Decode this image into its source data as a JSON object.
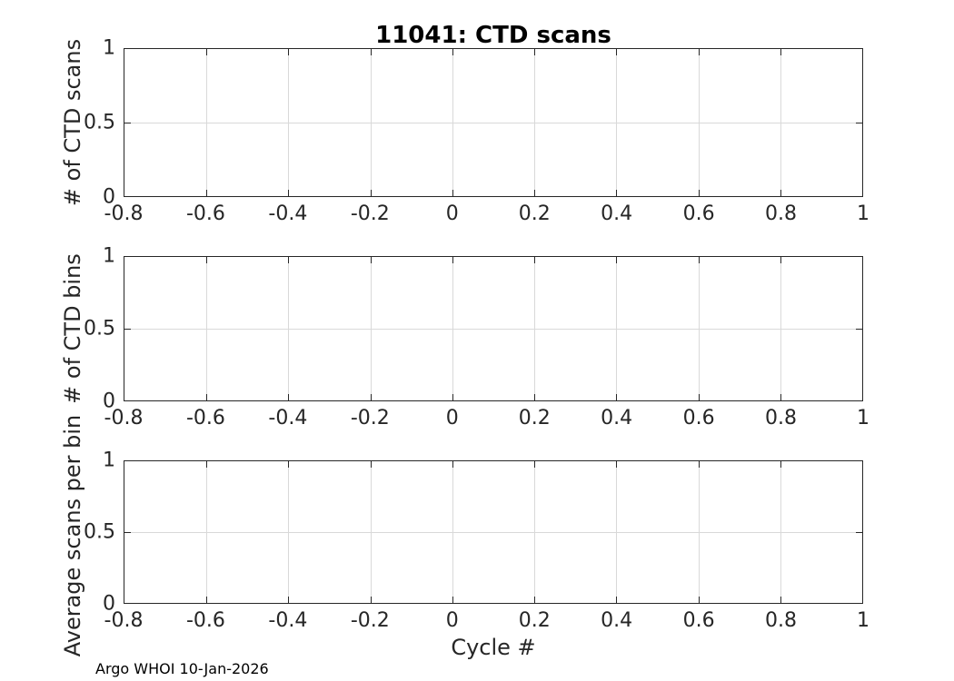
{
  "figure": {
    "title": "11041: CTD scans",
    "xlabel": "Cycle #",
    "footer": "Argo WHOI 10-Jan-2026",
    "background_color": "#ffffff",
    "axis_color": "#262626",
    "grid_color": "#d9d9d9",
    "title_color": "#000000"
  },
  "chart_data": [
    {
      "type": "line",
      "title": "11041: CTD scans",
      "ylabel": "# of CTD scans",
      "xlabel": "",
      "xlim": [
        -0.8,
        1
      ],
      "ylim": [
        0,
        1
      ],
      "xticks": [
        "-0.8",
        "-0.6",
        "-0.4",
        "-0.2",
        "0",
        "0.2",
        "0.4",
        "0.6",
        "0.8",
        "1"
      ],
      "yticks": [
        "0",
        "0.5",
        "1"
      ],
      "grid": true,
      "box": true,
      "series": []
    },
    {
      "type": "line",
      "title": "",
      "ylabel": "# of CTD bins",
      "xlabel": "",
      "xlim": [
        -0.8,
        1
      ],
      "ylim": [
        0,
        1
      ],
      "xticks": [
        "-0.8",
        "-0.6",
        "-0.4",
        "-0.2",
        "0",
        "0.2",
        "0.4",
        "0.6",
        "0.8",
        "1"
      ],
      "yticks": [
        "0",
        "0.5",
        "1"
      ],
      "grid": true,
      "box": true,
      "series": []
    },
    {
      "type": "line",
      "title": "",
      "ylabel": "Average scans per bin",
      "xlabel": "Cycle #",
      "xlim": [
        -0.8,
        1
      ],
      "ylim": [
        0,
        1
      ],
      "xticks": [
        "-0.8",
        "-0.6",
        "-0.4",
        "-0.2",
        "0",
        "0.2",
        "0.4",
        "0.6",
        "0.8",
        "1"
      ],
      "yticks": [
        "0",
        "0.5",
        "1"
      ],
      "grid": true,
      "box": true,
      "series": []
    }
  ]
}
